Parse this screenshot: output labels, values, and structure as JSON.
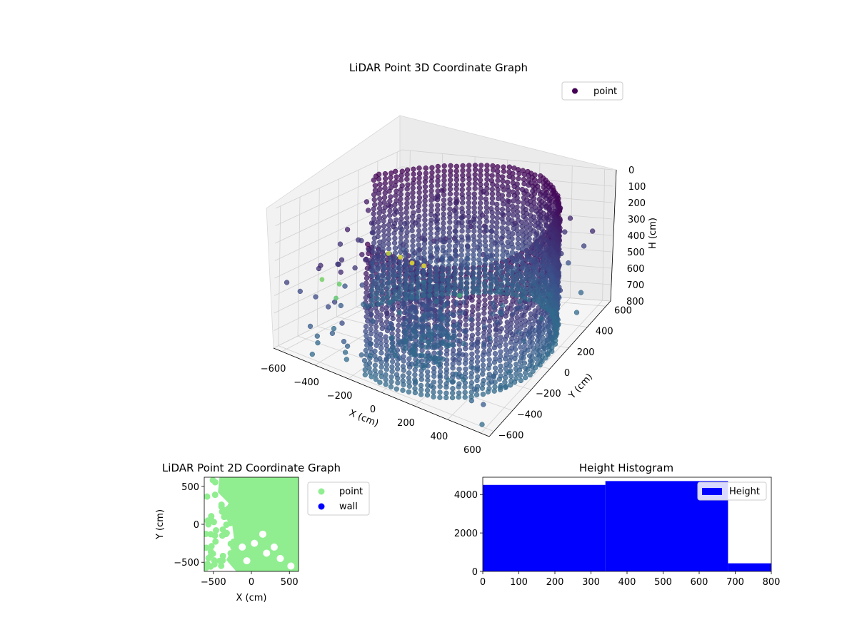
{
  "chart_data": [
    {
      "type": "scatter",
      "projection": "3d",
      "title": "LiDAR Point 3D Coordinate Graph",
      "xlabel": "X (cm)",
      "ylabel": "Y (cm)",
      "zlabel": "H (cm)",
      "xlim": [
        -650,
        650
      ],
      "ylim": [
        -650,
        650
      ],
      "zlim": [
        0,
        800
      ],
      "z_inverted": true,
      "xticks": [
        "−600",
        "−400",
        "−200",
        "0",
        "200",
        "400",
        "600"
      ],
      "yticks": [
        "−600",
        "−400",
        "−200",
        "0",
        "200",
        "400",
        "600"
      ],
      "zticks": [
        "0",
        "100",
        "200",
        "300",
        "400",
        "500",
        "600",
        "700",
        "800"
      ],
      "legend": {
        "placement": "top-right",
        "entries": [
          {
            "label": "point",
            "color": "#440154"
          }
        ]
      },
      "colormap": "viridis",
      "grid": true,
      "series": [
        {
          "name": "point",
          "description_of_distribution": "dense cylindrical wall of radius ~600 cm spanning heights 0–800 plus scattered interior points",
          "sample_points": [
            {
              "x": 100,
              "y": 600,
              "h": 50
            },
            {
              "x": 300,
              "y": 550,
              "h": 100
            },
            {
              "x": 500,
              "y": 400,
              "h": 200
            },
            {
              "x": 600,
              "y": 100,
              "h": 300
            },
            {
              "x": 550,
              "y": -200,
              "h": 400
            },
            {
              "x": 400,
              "y": -450,
              "h": 500
            },
            {
              "x": 200,
              "y": -600,
              "h": 600
            },
            {
              "x": -50,
              "y": -100,
              "h": 700
            },
            {
              "x": -100,
              "y": -300,
              "h": 780
            },
            {
              "x": 100,
              "y": -200,
              "h": 780
            }
          ]
        }
      ]
    },
    {
      "type": "scatter",
      "title": "LiDAR Point 2D Coordinate Graph",
      "xlabel": "X (cm)",
      "ylabel": "Y (cm)",
      "xlim": [
        -620,
        620
      ],
      "ylim": [
        -620,
        620
      ],
      "xticks": [
        "−500",
        "0",
        "500"
      ],
      "yticks": [
        "−500",
        "0",
        "500"
      ],
      "legend": {
        "placement": "right-outside",
        "entries": [
          {
            "label": "point",
            "color": "#90ee90"
          },
          {
            "label": "wall",
            "color": "#0000ff"
          }
        ]
      },
      "series": [
        {
          "name": "point",
          "color": "#90ee90",
          "coverage": "fills most of the plotted area"
        },
        {
          "name": "wall",
          "color": "#0000ff",
          "points": []
        }
      ]
    },
    {
      "type": "bar",
      "subtype": "histogram",
      "title": "Height Histogram",
      "xlabel": "",
      "ylabel": "",
      "xlim": [
        0,
        800
      ],
      "ylim": [
        0,
        4900
      ],
      "xticks": [
        "0",
        "100",
        "200",
        "300",
        "400",
        "500",
        "600",
        "700",
        "800"
      ],
      "yticks": [
        "0",
        "2000",
        "4000"
      ],
      "legend": {
        "placement": "top-right",
        "entries": [
          {
            "label": "Height",
            "color": "#0000ff"
          }
        ]
      },
      "bins": [
        {
          "start": 0,
          "end": 340,
          "value": 4500
        },
        {
          "start": 340,
          "end": 680,
          "value": 4700
        },
        {
          "start": 680,
          "end": 800,
          "value": 420
        }
      ],
      "color": "#0000ff"
    }
  ]
}
